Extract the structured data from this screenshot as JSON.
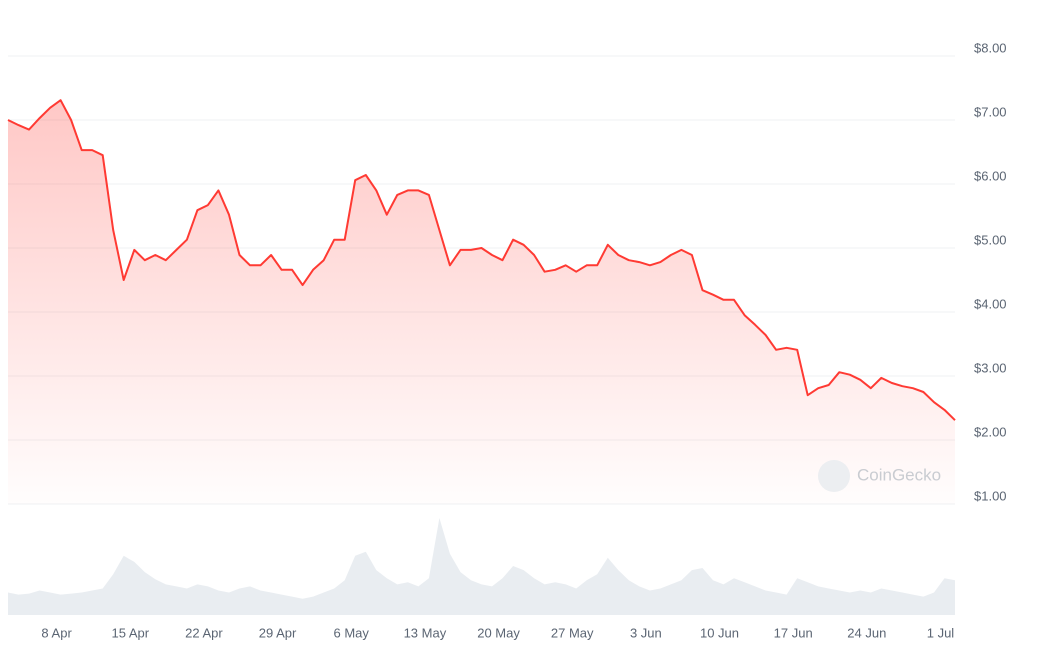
{
  "chart_data": {
    "type": "line",
    "color": "#ff3a33",
    "watermark": "CoinGecko",
    "x": [
      "3 Apr",
      "4 Apr",
      "5 Apr",
      "6 Apr",
      "7 Apr",
      "8 Apr",
      "9 Apr",
      "10 Apr",
      "11 Apr",
      "12 Apr",
      "13 Apr",
      "14 Apr",
      "15 Apr",
      "16 Apr",
      "17 Apr",
      "18 Apr",
      "19 Apr",
      "20 Apr",
      "21 Apr",
      "22 Apr",
      "23 Apr",
      "24 Apr",
      "25 Apr",
      "26 Apr",
      "27 Apr",
      "28 Apr",
      "29 Apr",
      "30 Apr",
      "1 May",
      "2 May",
      "3 May",
      "4 May",
      "5 May",
      "6 May",
      "7 May",
      "8 May",
      "9 May",
      "10 May",
      "11 May",
      "12 May",
      "13 May",
      "14 May",
      "15 May",
      "16 May",
      "17 May",
      "18 May",
      "19 May",
      "20 May",
      "21 May",
      "22 May",
      "23 May",
      "24 May",
      "25 May",
      "26 May",
      "27 May",
      "28 May",
      "29 May",
      "30 May",
      "31 May",
      "1 Jun",
      "2 Jun",
      "3 Jun",
      "4 Jun",
      "5 Jun",
      "6 Jun",
      "7 Jun",
      "8 Jun",
      "9 Jun",
      "10 Jun",
      "11 Jun",
      "12 Jun",
      "13 Jun",
      "14 Jun",
      "15 Jun",
      "16 Jun",
      "17 Jun",
      "18 Jun",
      "19 Jun",
      "20 Jun",
      "21 Jun",
      "22 Jun",
      "23 Jun",
      "24 Jun",
      "25 Jun",
      "26 Jun",
      "27 Jun",
      "28 Jun",
      "29 Jun",
      "30 Jun",
      "1 Jul",
      "2 Jul"
    ],
    "values": [
      7.0,
      6.92,
      6.85,
      7.03,
      7.19,
      7.31,
      7.0,
      6.53,
      6.53,
      6.45,
      5.28,
      4.5,
      4.97,
      4.81,
      4.89,
      4.81,
      4.97,
      5.13,
      5.59,
      5.67,
      5.9,
      5.52,
      4.89,
      4.73,
      4.73,
      4.89,
      4.66,
      4.66,
      4.42,
      4.66,
      4.81,
      5.13,
      5.13,
      6.06,
      6.14,
      5.9,
      5.52,
      5.83,
      5.9,
      5.9,
      5.83,
      5.28,
      4.73,
      4.97,
      4.97,
      5.0,
      4.89,
      4.81,
      5.13,
      5.05,
      4.89,
      4.63,
      4.66,
      4.73,
      4.63,
      4.73,
      4.73,
      5.05,
      4.89,
      4.81,
      4.78,
      4.73,
      4.78,
      4.89,
      4.97,
      4.89,
      4.34,
      4.27,
      4.19,
      4.19,
      3.95,
      3.8,
      3.64,
      3.41,
      3.44,
      3.41,
      2.7,
      2.81,
      2.86,
      3.06,
      3.02,
      2.94,
      2.81,
      2.97,
      2.89,
      2.84,
      2.81,
      2.75,
      2.59,
      2.47,
      2.31
    ],
    "volume": {
      "color": "#e9edf1",
      "values": [
        22,
        20,
        21,
        24,
        22,
        20,
        21,
        22,
        24,
        26,
        40,
        58,
        52,
        42,
        35,
        30,
        28,
        26,
        30,
        28,
        24,
        22,
        26,
        28,
        24,
        22,
        20,
        18,
        16,
        18,
        22,
        26,
        34,
        58,
        62,
        44,
        36,
        30,
        32,
        28,
        36,
        95,
        60,
        42,
        34,
        30,
        28,
        36,
        48,
        44,
        36,
        30,
        32,
        30,
        26,
        34,
        40,
        56,
        44,
        34,
        28,
        24,
        26,
        30,
        34,
        44,
        46,
        34,
        30,
        36,
        32,
        28,
        24,
        22,
        20,
        36,
        32,
        28,
        26,
        24,
        22,
        24,
        22,
        26,
        24,
        22,
        20,
        18,
        22,
        36,
        34
      ]
    },
    "ylim": [
      1,
      8.4
    ],
    "yticks": [
      {
        "value": 1,
        "label": "$1.00"
      },
      {
        "value": 2,
        "label": "$2.00"
      },
      {
        "value": 3,
        "label": "$3.00"
      },
      {
        "value": 4,
        "label": "$4.00"
      },
      {
        "value": 5,
        "label": "$5.00"
      },
      {
        "value": 6,
        "label": "$6.00"
      },
      {
        "value": 7,
        "label": "$7.00"
      },
      {
        "value": 8,
        "label": "$8.00"
      }
    ],
    "xticks": [
      "8 Apr",
      "15 Apr",
      "22 Apr",
      "29 Apr",
      "6 May",
      "13 May",
      "20 May",
      "27 May",
      "3 Jun",
      "10 Jun",
      "17 Jun",
      "24 Jun",
      "1 Jul"
    ],
    "grid": true
  }
}
